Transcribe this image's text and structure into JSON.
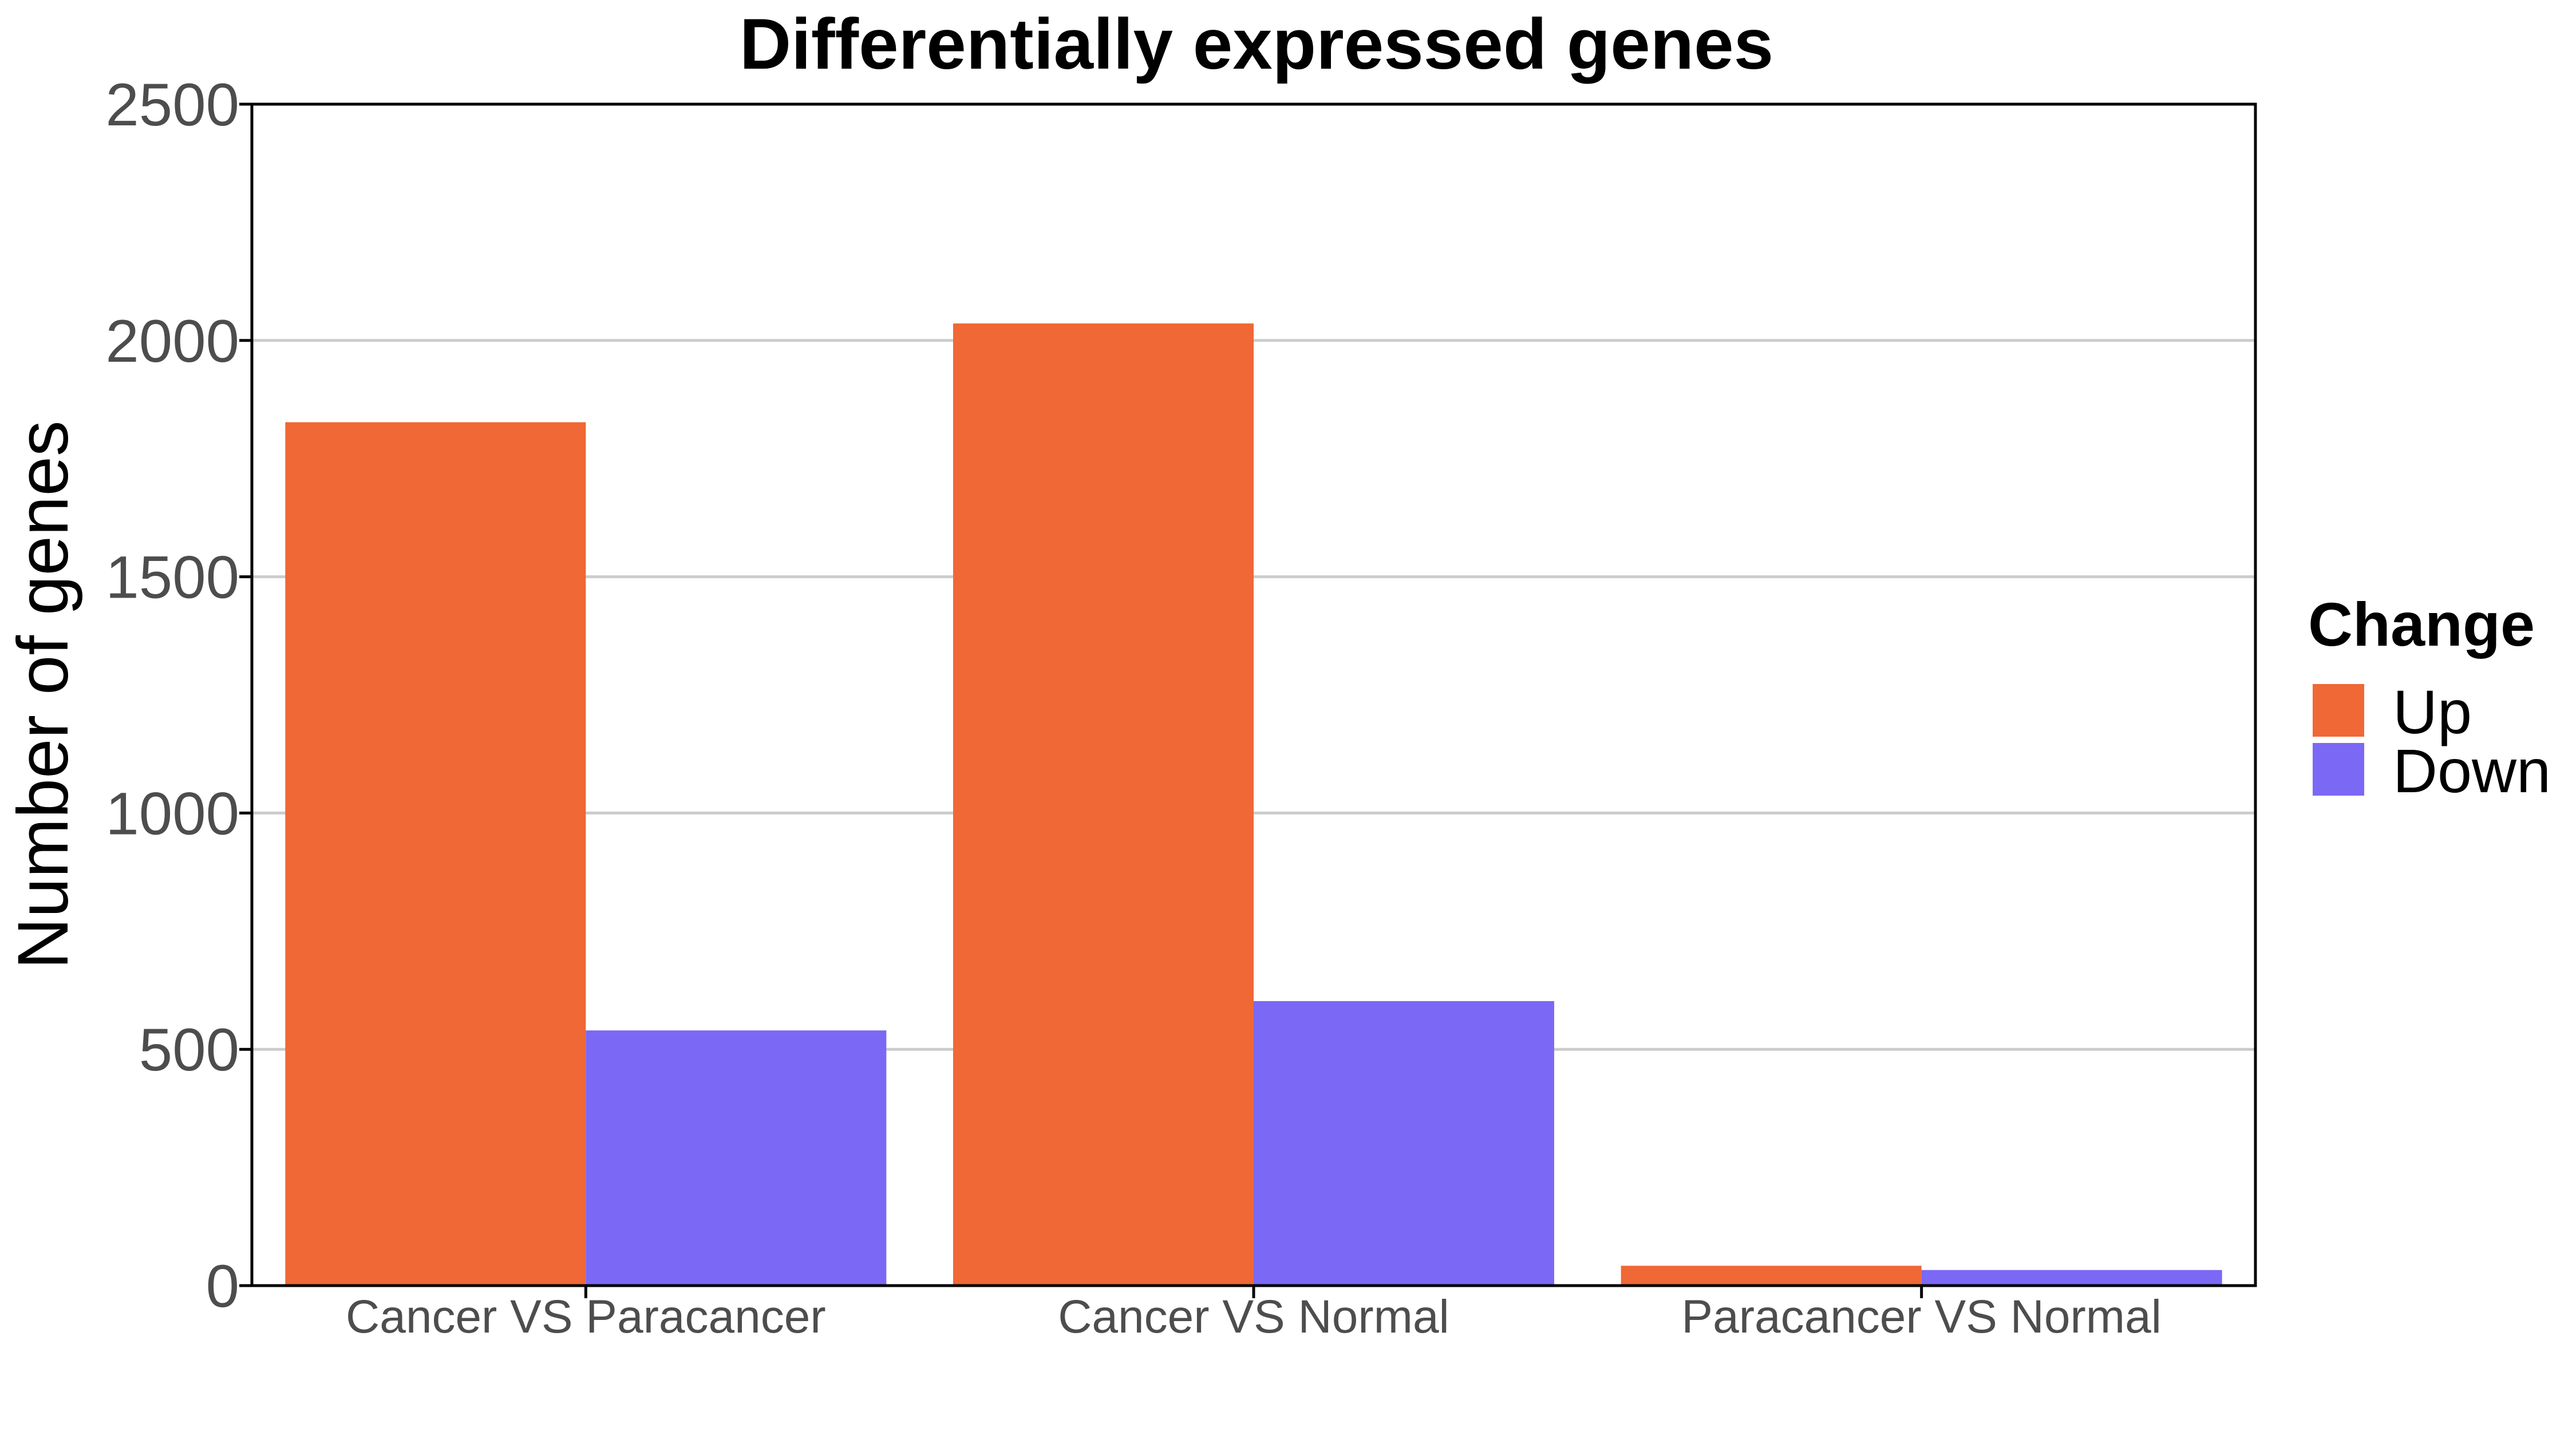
{
  "chart_data": {
    "type": "bar",
    "title": "Differentially expressed genes",
    "xlabel": "",
    "ylabel": "Number of genes",
    "categories": [
      "Cancer VS Paracancer",
      "Cancer VS Normal",
      "Paracancer VS Normal"
    ],
    "series": [
      {
        "name": "Up",
        "color": "#EF6835",
        "values": [
          1827,
          2036,
          42
        ]
      },
      {
        "name": "Down",
        "color": "#7B68F5",
        "values": [
          540,
          602,
          33
        ]
      }
    ],
    "ylim": [
      0,
      2500
    ],
    "yticks": [
      0,
      500,
      1000,
      1500,
      2000,
      2500
    ],
    "grid": "horizontal major lines",
    "legend": {
      "title": "Change",
      "placement": "right"
    }
  }
}
